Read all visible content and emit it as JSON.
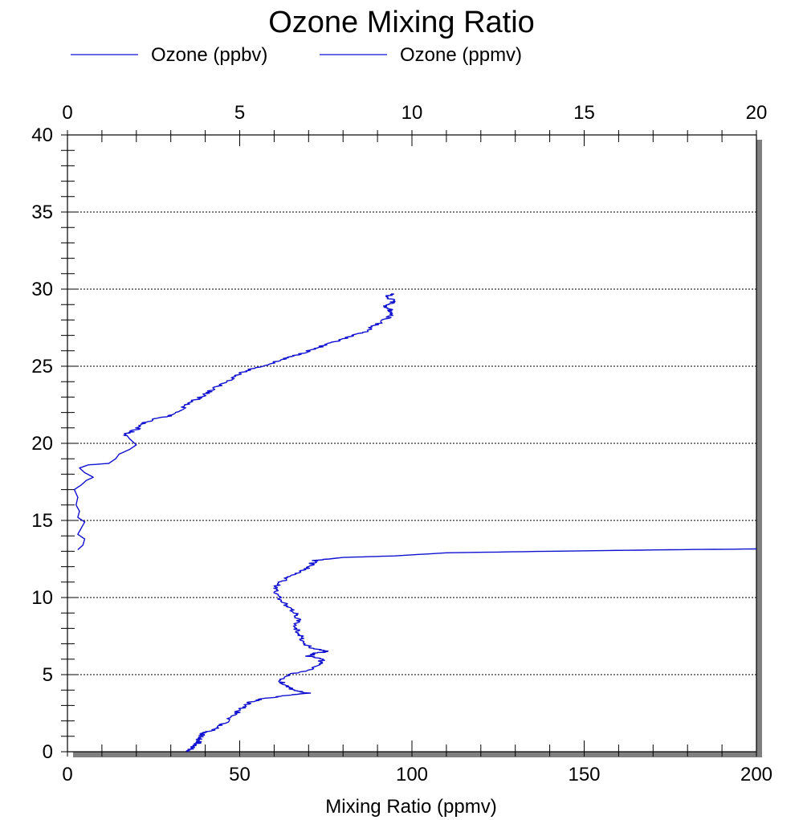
{
  "chart_data": {
    "type": "line",
    "title": "Ozone Mixing Ratio",
    "xlabel": "Mixing Ratio (ppmv)",
    "ylabel": "",
    "legend_position": "top",
    "grid": "horizontal dotted",
    "colors": {
      "series": "#1010d0",
      "shadow": "#808080",
      "grid": "#000000"
    },
    "axes": {
      "y": {
        "range": [
          0,
          40
        ],
        "ticks": [
          0,
          5,
          10,
          15,
          20,
          25,
          30,
          35,
          40
        ]
      },
      "bottom": {
        "range": [
          0,
          200
        ],
        "ticks": [
          0,
          50,
          100,
          150,
          200
        ]
      },
      "top": {
        "range": [
          0,
          20
        ],
        "ticks": [
          0,
          5,
          10,
          15,
          20
        ]
      }
    },
    "series": [
      {
        "name": "Ozone (ppbv)",
        "axis": "bottom",
        "points": [
          [
            35,
            0
          ],
          [
            36,
            0.2
          ],
          [
            37,
            0.4
          ],
          [
            38,
            0.6
          ],
          [
            38,
            0.8
          ],
          [
            39,
            1.0
          ],
          [
            39,
            1.2
          ],
          [
            41,
            1.3
          ],
          [
            43,
            1.5
          ],
          [
            45,
            1.8
          ],
          [
            47,
            2.1
          ],
          [
            49,
            2.5
          ],
          [
            51,
            2.9
          ],
          [
            53,
            3.2
          ],
          [
            56,
            3.4
          ],
          [
            62,
            3.6
          ],
          [
            70,
            3.8
          ],
          [
            66,
            4.0
          ],
          [
            63,
            4.3
          ],
          [
            62,
            4.6
          ],
          [
            64,
            5.0
          ],
          [
            70,
            5.3
          ],
          [
            73,
            5.7
          ],
          [
            74,
            6.0
          ],
          [
            70,
            6.2
          ],
          [
            72,
            6.4
          ],
          [
            76,
            6.5
          ],
          [
            71,
            6.7
          ],
          [
            69,
            7.0
          ],
          [
            68,
            7.4
          ],
          [
            67,
            7.8
          ],
          [
            66,
            8.2
          ],
          [
            67,
            8.6
          ],
          [
            66,
            9.0
          ],
          [
            64,
            9.4
          ],
          [
            62,
            9.8
          ],
          [
            61,
            10.2
          ],
          [
            60,
            10.6
          ],
          [
            62,
            11.0
          ],
          [
            64,
            11.3
          ],
          [
            67,
            11.6
          ],
          [
            70,
            11.9
          ],
          [
            71,
            12.2
          ],
          [
            72,
            12.4
          ],
          [
            80,
            12.6
          ],
          [
            95,
            12.7
          ],
          [
            110,
            12.9
          ],
          [
            140,
            13.0
          ],
          [
            175,
            13.1
          ],
          [
            200,
            13.15
          ]
        ]
      },
      {
        "name": "Ozone (ppmv)",
        "axis": "top",
        "points": [
          [
            0.3,
            13.1
          ],
          [
            0.45,
            13.4
          ],
          [
            0.5,
            13.8
          ],
          [
            0.3,
            14.1
          ],
          [
            0.4,
            14.5
          ],
          [
            0.5,
            14.9
          ],
          [
            0.3,
            15.2
          ],
          [
            0.35,
            15.6
          ],
          [
            0.25,
            16.0
          ],
          [
            0.3,
            16.5
          ],
          [
            0.2,
            17.0
          ],
          [
            0.4,
            17.3
          ],
          [
            0.55,
            17.6
          ],
          [
            0.75,
            17.8
          ],
          [
            0.5,
            18.1
          ],
          [
            0.35,
            18.4
          ],
          [
            0.6,
            18.6
          ],
          [
            1.2,
            18.7
          ],
          [
            1.4,
            19.0
          ],
          [
            1.5,
            19.3
          ],
          [
            1.8,
            19.6
          ],
          [
            2.0,
            19.9
          ],
          [
            1.8,
            20.3
          ],
          [
            1.7,
            20.6
          ],
          [
            2.0,
            20.9
          ],
          [
            2.2,
            21.3
          ],
          [
            2.6,
            21.6
          ],
          [
            3.0,
            21.8
          ],
          [
            3.3,
            22.2
          ],
          [
            3.5,
            22.6
          ],
          [
            3.8,
            22.9
          ],
          [
            4.0,
            23.2
          ],
          [
            4.3,
            23.6
          ],
          [
            4.6,
            24.0
          ],
          [
            4.9,
            24.4
          ],
          [
            5.3,
            24.8
          ],
          [
            5.8,
            25.1
          ],
          [
            6.2,
            25.4
          ],
          [
            6.6,
            25.7
          ],
          [
            7.0,
            26.0
          ],
          [
            7.4,
            26.3
          ],
          [
            7.8,
            26.6
          ],
          [
            8.2,
            26.9
          ],
          [
            8.6,
            27.2
          ],
          [
            8.9,
            27.6
          ],
          [
            9.2,
            28.0
          ],
          [
            9.4,
            28.3
          ],
          [
            9.4,
            28.6
          ],
          [
            9.2,
            28.9
          ],
          [
            9.5,
            29.2
          ],
          [
            9.3,
            29.5
          ],
          [
            9.4,
            29.7
          ]
        ]
      }
    ]
  }
}
